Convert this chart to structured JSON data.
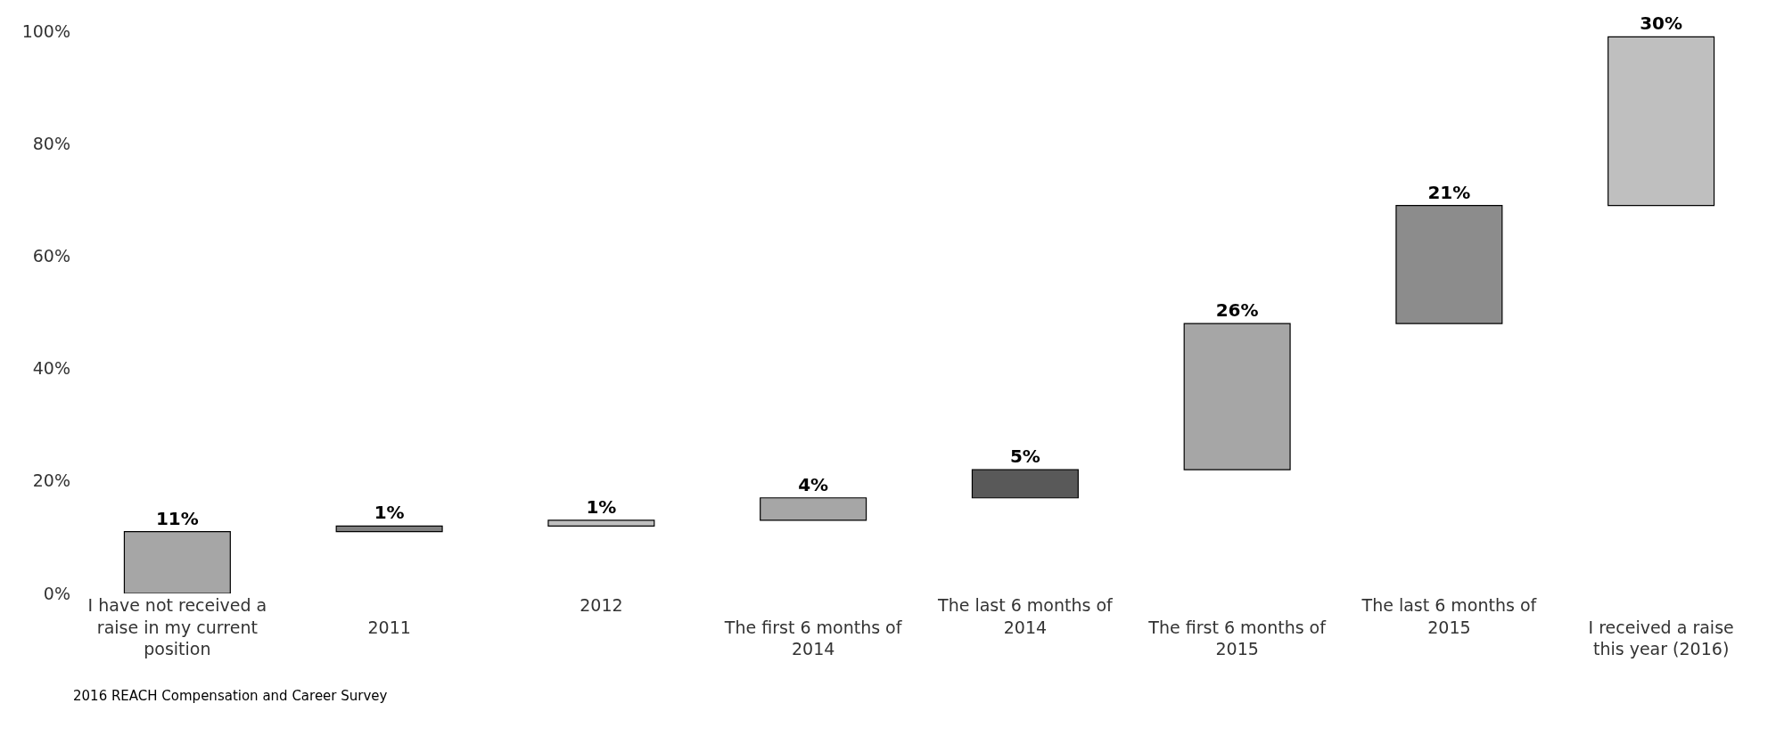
{
  "chart_data": {
    "type": "bar",
    "categories": [
      "I have not received a raise in my current position",
      "2011",
      "2012",
      "The first 6 months of 2014",
      "The last 6 months of 2014",
      "The first 6 months of 2015",
      "The last 6 months of 2015",
      "I received a raise this year (2016)"
    ],
    "values": [
      11,
      1,
      1,
      4,
      5,
      26,
      21,
      30
    ],
    "base": [
      0,
      11,
      12,
      13,
      17,
      22,
      48,
      69
    ],
    "colors": [
      "#a6a6a6",
      "#808080",
      "#bfbfbf",
      "#a6a6a6",
      "#595959",
      "#a6a6a6",
      "#8c8c8c",
      "#bfbfbf"
    ],
    "value_labels": [
      "11%",
      "1%",
      "1%",
      "4%",
      "5%",
      "26%",
      "21%",
      "30%"
    ],
    "ylim": [
      0,
      100
    ],
    "yticks": [
      {
        "value": 0,
        "label": "0%"
      },
      {
        "value": 20,
        "label": "20%"
      },
      {
        "value": 40,
        "label": "40%"
      },
      {
        "value": 60,
        "label": "60%"
      },
      {
        "value": 80,
        "label": "80%"
      },
      {
        "value": 100,
        "label": "100%"
      }
    ],
    "annotations": [
      "2016 REACH Compensation and Career Survey"
    ]
  }
}
